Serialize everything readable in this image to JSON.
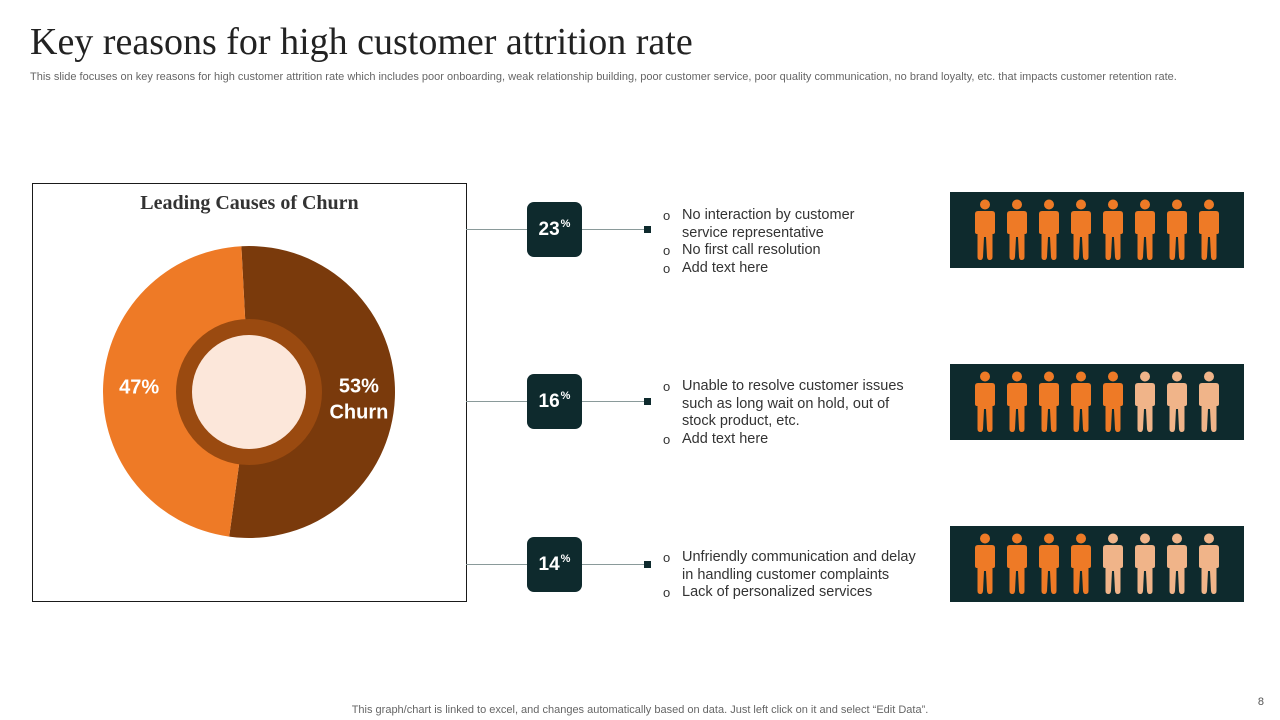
{
  "slide": {
    "title": "Key reasons for high customer attrition rate",
    "description": "This slide focuses on key reasons for high customer attrition rate which includes poor onboarding, weak relationship building, poor customer service, poor quality communication, no brand loyalty, etc. that impacts customer retention rate.",
    "footer_note": "This graph/chart is linked to excel, and changes automatically based on data. Just left click on it and select “Edit Data”.",
    "page_number": "8"
  },
  "colors": {
    "dark_panel": "#0e2a2d",
    "churn": "#7a3a0c",
    "other": "#ee7a26",
    "inner_ring": "#9a4a10",
    "center": "#fce7da",
    "person_highlight": "#ee7a26",
    "person_light": "#f0b489"
  },
  "chart_data": {
    "type": "pie",
    "variant": "donut",
    "title": "Leading Causes of Churn",
    "slices": [
      {
        "label": "Churn",
        "value": 53,
        "display": "53%"
      },
      {
        "label": "",
        "value": 47,
        "display": "47%"
      }
    ]
  },
  "reasons": [
    {
      "percent": "23",
      "percent_sign": "%",
      "bullets": [
        "No interaction by customer service representative",
        "No first call resolution",
        "Add text here"
      ],
      "people_total": 8,
      "people_highlighted": 8
    },
    {
      "percent": "16",
      "percent_sign": "%",
      "bullets": [
        "Unable to resolve customer issues such as long wait on hold, out of stock product, etc.",
        "Add text here"
      ],
      "people_total": 8,
      "people_highlighted": 5
    },
    {
      "percent": "14",
      "percent_sign": "%",
      "bullets": [
        "Unfriendly communication and delay in handling customer complaints",
        "Lack of personalized services"
      ],
      "people_total": 8,
      "people_highlighted": 4
    }
  ]
}
